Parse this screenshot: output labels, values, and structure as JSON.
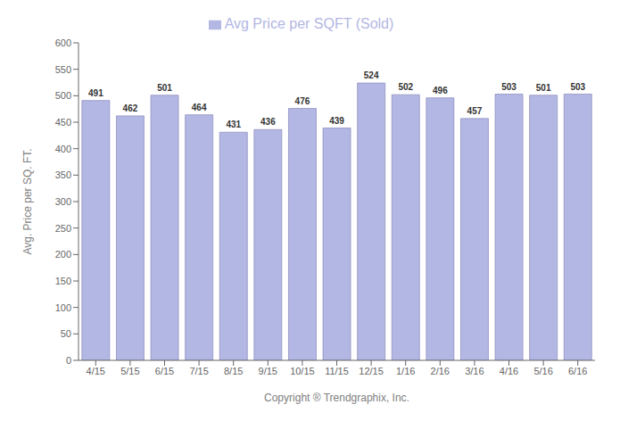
{
  "chart_data": {
    "type": "bar",
    "categories": [
      "4/15",
      "5/15",
      "6/15",
      "7/15",
      "8/15",
      "9/15",
      "10/15",
      "11/15",
      "12/15",
      "1/16",
      "2/16",
      "3/16",
      "4/16",
      "5/16",
      "6/16"
    ],
    "series": [
      {
        "name": "Avg Price per SQFT (Sold)",
        "color": "#b3b7e3",
        "values": [
          491,
          462,
          501,
          464,
          431,
          436,
          476,
          439,
          524,
          502,
          496,
          457,
          503,
          501,
          503
        ]
      }
    ],
    "xlabel": "Copyright ® Trendgraphix, Inc.",
    "ylabel": "Avg. Price per SQ. FT.",
    "ylim": [
      0,
      600
    ],
    "yticks": [
      0,
      50,
      100,
      150,
      200,
      250,
      300,
      350,
      400,
      450,
      500,
      550,
      600
    ],
    "grid": false,
    "legend": "top",
    "data_labels": true
  }
}
